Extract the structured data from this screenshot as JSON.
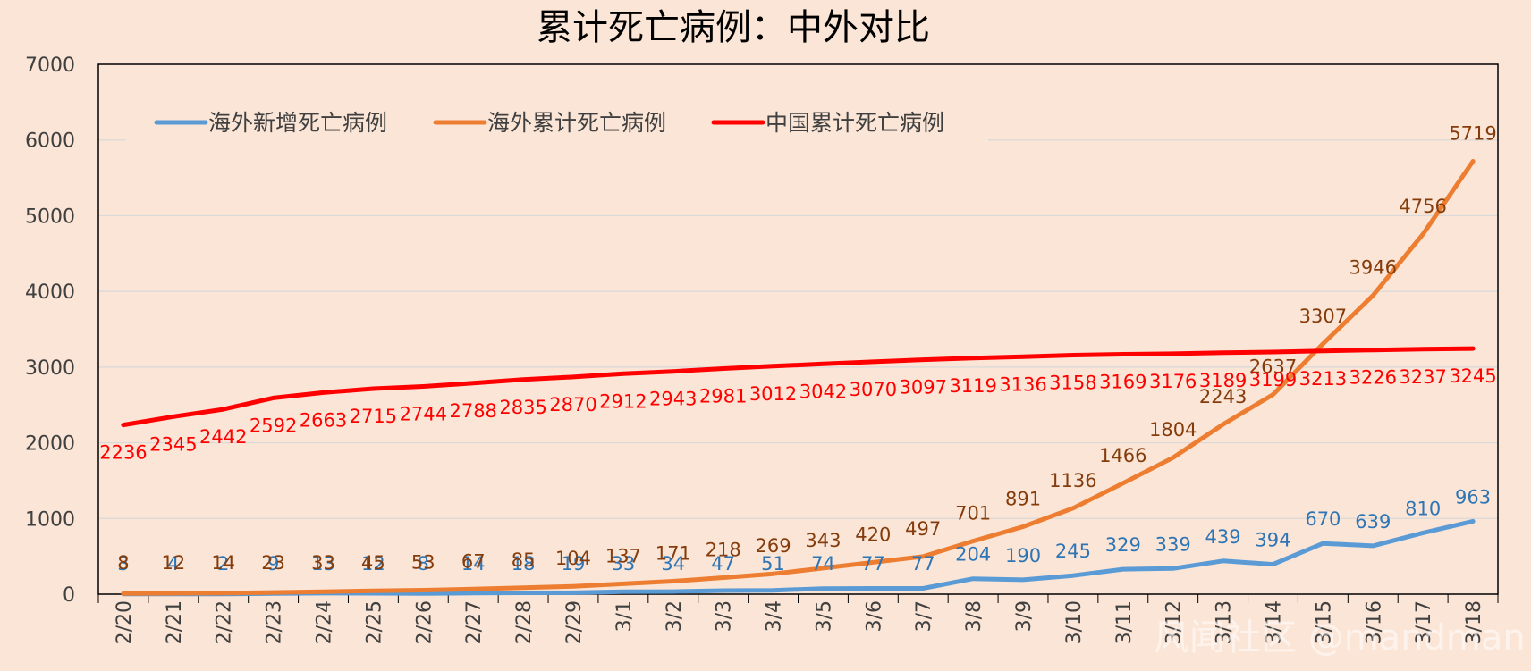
{
  "watermark": "风闻社区 @mandman",
  "colors": {
    "background": "#fbe5d6",
    "overseas_new": "#5b9bd5",
    "overseas_cum": "#ed7d31",
    "china_cum": "#ff0000",
    "label_overseas_new": "#2e75b6",
    "label_overseas_cum": "#843c0c",
    "label_china_cum": "#ff0000"
  },
  "chart_data": {
    "type": "line",
    "title": "累计死亡病例：中外对比",
    "xlabel": "",
    "ylabel": "",
    "ylim": [
      0,
      7000
    ],
    "yticks": [
      0,
      1000,
      2000,
      3000,
      4000,
      5000,
      6000,
      7000
    ],
    "grid": "horizontal",
    "legend_position": "top",
    "categories": [
      "2/20",
      "2/21",
      "2/22",
      "2/23",
      "2/24",
      "2/25",
      "2/26",
      "2/27",
      "2/28",
      "2/29",
      "3/1",
      "3/2",
      "3/3",
      "3/4",
      "3/5",
      "3/6",
      "3/7",
      "3/8",
      "3/9",
      "3/10",
      "3/11",
      "3/12",
      "3/13",
      "3/14",
      "3/15",
      "3/16",
      "3/17",
      "3/18"
    ],
    "series": [
      {
        "name": "海外新增死亡病例",
        "values": [
          3,
          4,
          2,
          9,
          13,
          12,
          8,
          14,
          18,
          19,
          33,
          34,
          47,
          51,
          74,
          77,
          77,
          204,
          190,
          245,
          329,
          339,
          439,
          394,
          670,
          639,
          810,
          963
        ]
      },
      {
        "name": "海外累计死亡病例",
        "values": [
          8,
          12,
          14,
          23,
          33,
          45,
          53,
          67,
          85,
          104,
          137,
          171,
          218,
          269,
          343,
          420,
          497,
          701,
          891,
          1136,
          1466,
          1804,
          2243,
          2637,
          3307,
          3946,
          4756,
          5719
        ]
      },
      {
        "name": "中国累计死亡病例",
        "values": [
          2236,
          2345,
          2442,
          2592,
          2663,
          2715,
          2744,
          2788,
          2835,
          2870,
          2912,
          2943,
          2981,
          3012,
          3042,
          3070,
          3097,
          3119,
          3136,
          3158,
          3169,
          3176,
          3189,
          3199,
          3213,
          3226,
          3237,
          3245
        ]
      }
    ]
  }
}
